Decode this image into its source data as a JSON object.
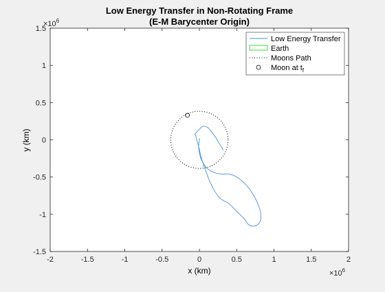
{
  "chart_data": {
    "type": "line",
    "title_lines": [
      "Low Energy Transfer in Non-Rotating Frame",
      "(E-M Barycenter Origin)"
    ],
    "xlabel": "x (km)",
    "ylabel": "y (km)",
    "x_exponent_label": "×10",
    "x_exponent_power": "6",
    "y_exponent_label": "×10",
    "y_exponent_power": "6",
    "xlim": [
      -2,
      2
    ],
    "ylim": [
      -1.5,
      1.5
    ],
    "units_scale": 1000000,
    "x_ticks": [
      -2,
      -1.5,
      -1,
      -0.5,
      0,
      0.5,
      1,
      1.5,
      2
    ],
    "x_tick_labels": [
      "-2",
      "-1.5",
      "-1",
      "-0.5",
      "0",
      "0.5",
      "1",
      "1.5",
      "2"
    ],
    "y_ticks": [
      -1.5,
      -1,
      -0.5,
      0,
      0.5,
      1,
      1.5
    ],
    "y_tick_labels": [
      "-1.5",
      "-1",
      "-0.5",
      "0",
      "0.5",
      "1",
      "1.5"
    ],
    "grid": false,
    "legend_position": "top-right",
    "legend": [
      {
        "label": "Low Energy Transfer",
        "style": "line",
        "color": "#4a90d9"
      },
      {
        "label": "Earth",
        "style": "box",
        "color": "#22dd22"
      },
      {
        "label": "Moons Path",
        "style": "dotted",
        "color": "#000000"
      },
      {
        "label": "Moon at t",
        "subscript": "f",
        "style": "circle",
        "color": "#000000"
      }
    ],
    "series": [
      {
        "name": "Low Energy Transfer",
        "color": "#4a90d9",
        "x": [
          0.0,
          -0.01,
          0.02,
          0.1,
          0.2,
          0.3,
          0.4,
          0.5,
          0.6,
          0.7,
          0.78,
          0.82,
          0.82,
          0.78,
          0.72,
          0.66,
          0.6,
          0.5,
          0.4,
          0.33,
          0.27,
          0.2,
          0.14,
          0.09,
          0.05,
          0.02,
          0.0,
          -0.02,
          -0.04,
          -0.05,
          -0.06,
          -0.04,
          0.0,
          0.04,
          0.08,
          0.12,
          0.17,
          0.22,
          0.26,
          0.3,
          0.32
        ],
        "y": [
          0.0,
          -0.1,
          -0.25,
          -0.38,
          -0.44,
          -0.46,
          -0.46,
          -0.5,
          -0.58,
          -0.7,
          -0.85,
          -0.98,
          -1.08,
          -1.14,
          -1.16,
          -1.14,
          -1.06,
          -0.96,
          -0.86,
          -0.82,
          -0.78,
          -0.68,
          -0.56,
          -0.43,
          -0.32,
          -0.22,
          -0.13,
          -0.05,
          0.02,
          0.06,
          0.07,
          0.1,
          0.14,
          0.18,
          0.18,
          0.16,
          0.1,
          0.03,
          -0.04,
          -0.1,
          -0.14
        ]
      },
      {
        "name": "Earth",
        "color": "#22dd22",
        "x": [
          0.0,
          0.0
        ],
        "y": [
          0.0,
          0.02
        ]
      },
      {
        "name": "Moons Path",
        "type": "circle",
        "color": "#000000",
        "center": [
          0.0,
          0.0
        ],
        "radius": 0.384
      },
      {
        "name": "Moon at t_f",
        "type": "point",
        "color": "#000000",
        "x": [
          -0.16
        ],
        "y": [
          0.33
        ]
      }
    ]
  }
}
